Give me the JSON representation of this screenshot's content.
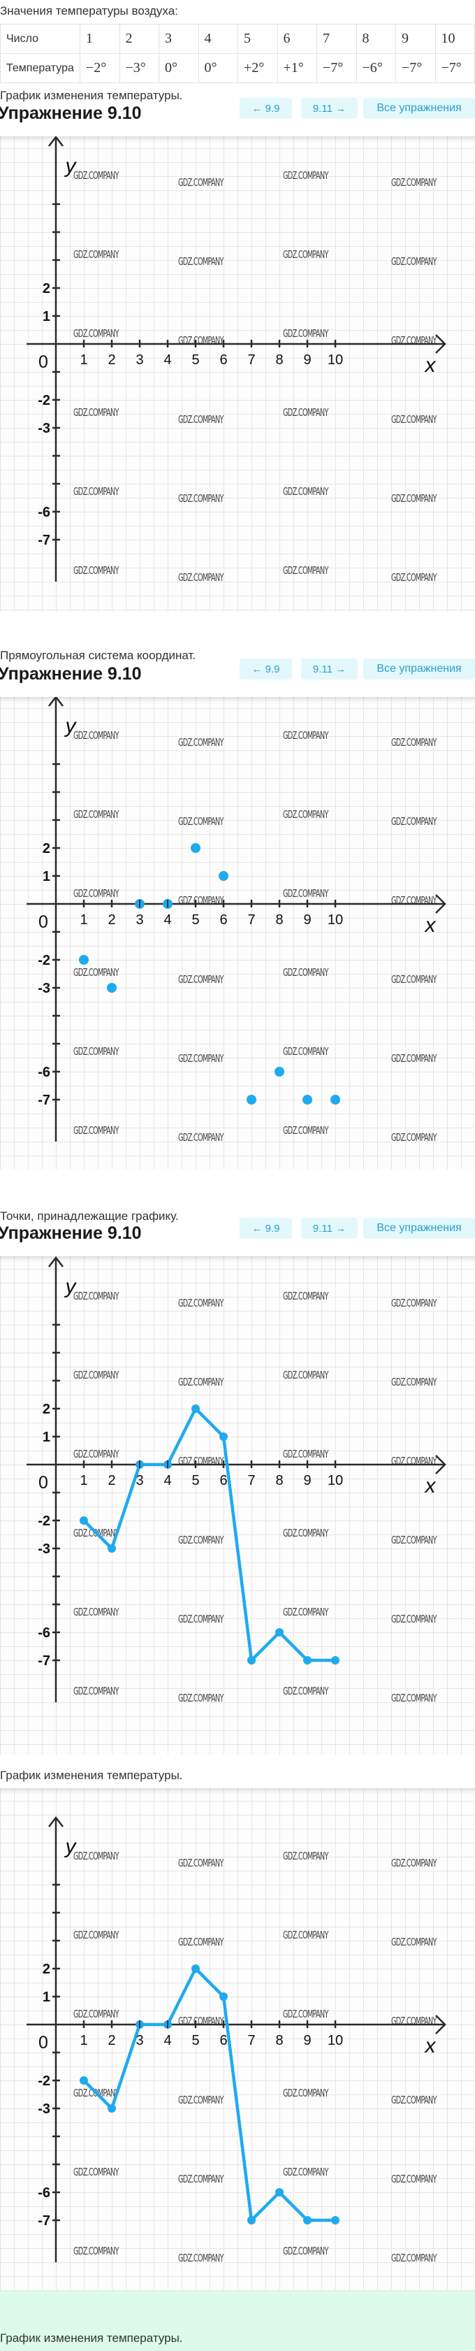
{
  "intro": "Значения температуры воздуха:",
  "table": {
    "row_labels": [
      "Число",
      "Температура"
    ],
    "days": [
      "1",
      "2",
      "3",
      "4",
      "5",
      "6",
      "7",
      "8",
      "9",
      "10"
    ],
    "temps": [
      "−2°",
      "−3°",
      "0°",
      "0°",
      "+2°",
      "+1°",
      "−7°",
      "−6°",
      "−7°",
      "−7°"
    ]
  },
  "captions": [
    "График изменения температуры.",
    "Прямоугольная система координат.",
    "Точки, принадлежащие графику.",
    "График изменения температуры.",
    "График изменения температуры."
  ],
  "nav": {
    "title": "Упражнение 9.10",
    "prev_label": "← 9.9",
    "next_label": "9.11 →",
    "all_label": "Все упражнения"
  },
  "watermark": "GDZ.COMPANY",
  "colors": {
    "accent": "#1faaee",
    "button_bg": "#e3f8fb",
    "button_text": "#2a9fcb",
    "footer_bg": "#dcfbea",
    "axis": "#2a2a2a"
  },
  "chart_data": [
    {
      "type": "line",
      "xlabel": "x",
      "ylabel": "y",
      "origin_label": "0",
      "x_ticks": [
        1,
        2,
        3,
        4,
        5,
        6,
        7,
        8,
        9,
        10
      ],
      "y_tick_labels": [
        2,
        1,
        -2,
        -3,
        -6,
        -7
      ],
      "y_ticks": [
        5,
        4,
        3,
        2,
        1,
        -1,
        -2,
        -3,
        -4,
        -5,
        -6,
        -7
      ],
      "xlim": [
        -1,
        14
      ],
      "ylim": [
        -8.5,
        7.4
      ],
      "grid": true,
      "series": []
    },
    {
      "type": "scatter",
      "xlabel": "x",
      "ylabel": "y",
      "origin_label": "0",
      "x_ticks": [
        1,
        2,
        3,
        4,
        5,
        6,
        7,
        8,
        9,
        10
      ],
      "y_tick_labels": [
        2,
        1,
        -2,
        -3,
        -6,
        -7
      ],
      "y_ticks": [
        5,
        4,
        3,
        2,
        1,
        -1,
        -2,
        -3,
        -4,
        -5,
        -6,
        -7
      ],
      "xlim": [
        -1,
        14
      ],
      "ylim": [
        -8.5,
        7.4
      ],
      "grid": true,
      "series": [
        {
          "x": [
            1,
            2,
            3,
            4,
            5,
            6,
            7,
            8,
            9,
            10
          ],
          "values": [
            -2,
            -3,
            0,
            0,
            2,
            1,
            -7,
            -6,
            -7,
            -7
          ]
        }
      ]
    },
    {
      "type": "line",
      "xlabel": "x",
      "ylabel": "y",
      "origin_label": "0",
      "x_ticks": [
        1,
        2,
        3,
        4,
        5,
        6,
        7,
        8,
        9,
        10
      ],
      "y_tick_labels": [
        2,
        1,
        -2,
        -3,
        -6,
        -7
      ],
      "y_ticks": [
        5,
        4,
        3,
        2,
        1,
        -1,
        -2,
        -3,
        -4,
        -5,
        -6,
        -7
      ],
      "xlim": [
        -1,
        14
      ],
      "ylim": [
        -8.5,
        7.4
      ],
      "grid": true,
      "series": [
        {
          "x": [
            1,
            2,
            3,
            4,
            5,
            6,
            7,
            8,
            9,
            10
          ],
          "values": [
            -2,
            -3,
            0,
            0,
            2,
            1,
            -7,
            -6,
            -7,
            -7
          ]
        }
      ]
    },
    {
      "type": "line",
      "xlabel": "x",
      "ylabel": "y",
      "origin_label": "0",
      "x_ticks": [
        1,
        2,
        3,
        4,
        5,
        6,
        7,
        8,
        9,
        10
      ],
      "y_tick_labels": [
        2,
        1,
        -2,
        -3,
        -6,
        -7
      ],
      "y_ticks": [
        5,
        4,
        3,
        2,
        1,
        -1,
        -2,
        -3,
        -4,
        -5,
        -6,
        -7
      ],
      "xlim": [
        -1,
        14
      ],
      "ylim": [
        -8.5,
        7.4
      ],
      "grid": true,
      "series": [
        {
          "x": [
            1,
            2,
            3,
            4,
            5,
            6,
            7,
            8,
            9,
            10
          ],
          "values": [
            -2,
            -3,
            0,
            0,
            2,
            1,
            -7,
            -6,
            -7,
            -7
          ]
        }
      ]
    }
  ]
}
